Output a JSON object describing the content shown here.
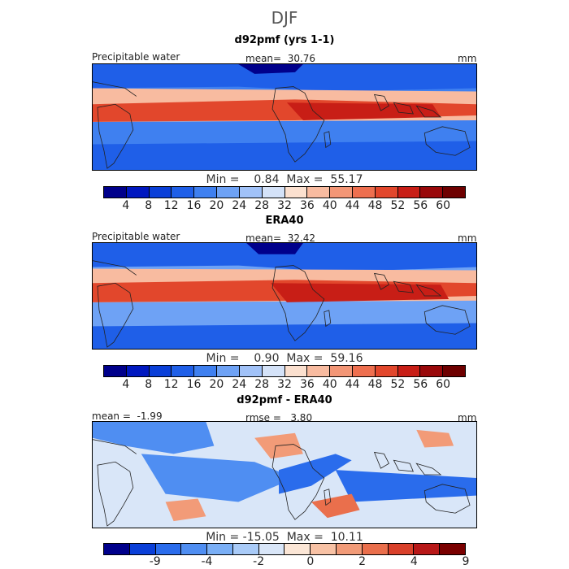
{
  "title": "DJF",
  "panels": [
    {
      "title": "d92pmf (yrs 1-1)",
      "left_label": "Precipitable water",
      "center_label": "mean=  30.76",
      "units": "mm",
      "minmax": "Min =    0.84  Max =  55.17",
      "ticks": [
        "4",
        "8",
        "12",
        "16",
        "20",
        "24",
        "28",
        "32",
        "36",
        "40",
        "44",
        "48",
        "52",
        "56",
        "60"
      ]
    },
    {
      "title": "ERA40",
      "left_label": "Precipitable water",
      "center_label": "mean=  32.42",
      "units": "mm",
      "minmax": "Min =    0.90  Max =  59.16",
      "ticks": [
        "4",
        "8",
        "12",
        "16",
        "20",
        "24",
        "28",
        "32",
        "36",
        "40",
        "44",
        "48",
        "52",
        "56",
        "60"
      ]
    },
    {
      "title": "d92pmf - ERA40",
      "left_label": "mean =  -1.99",
      "center_label": "rmse =   3.80",
      "units": "mm",
      "minmax": "Min = -15.05  Max =  10.11",
      "ticks": [
        "-9",
        "-4",
        "-2",
        "0",
        "2",
        "4",
        "9"
      ]
    }
  ],
  "colors": {
    "scale": [
      "#00008b",
      "#0018c0",
      "#0a3fd8",
      "#1f5fe8",
      "#3f80f0",
      "#6ea2f5",
      "#a1c2f8",
      "#d4e2f8",
      "#fbe0cf",
      "#f8bba0",
      "#f39676",
      "#ee6f4f",
      "#e2472c",
      "#c81e16",
      "#99080a",
      "#6e0000"
    ],
    "diff_scale": [
      "#00008b",
      "#0a3fd8",
      "#2a6cec",
      "#4f8ef2",
      "#7aaff6",
      "#a9cbf8",
      "#d9e6f8",
      "#fbe6d6",
      "#f8c2a5",
      "#f29b78",
      "#ea6f4c",
      "#d9402a",
      "#b81818",
      "#7a0000"
    ],
    "coast": "#222222"
  }
}
